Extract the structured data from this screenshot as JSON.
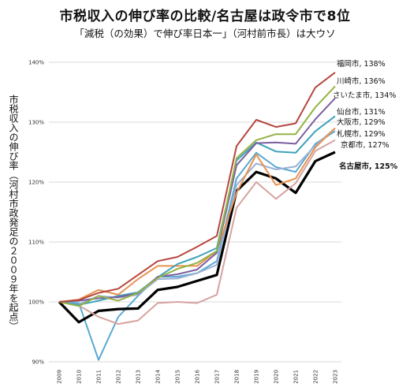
{
  "title": "市税収入の伸び率の比較/名古屋は政令市で8位",
  "subtitle": "「減税（の効果）で伸び率日本一」（河村前市長）は大ウソ",
  "chart_data": {
    "type": "line",
    "title": "市税収入の伸び率の比較/名古屋は政令市で8位",
    "subtitle": "「減税（の効果）で伸び率日本一」（河村前市長）は大ウソ",
    "ylabel": "市税収入の伸び率（河村市政発足の２００９年を起点）",
    "xlabel": "",
    "x": [
      "2009",
      "2010",
      "2011",
      "2012",
      "2013",
      "2014",
      "2015",
      "2016",
      "2017",
      "2018",
      "2019",
      "2020",
      "2021",
      "2022",
      "2023"
    ],
    "ylim": [
      90,
      140
    ],
    "yticks": [
      "90%",
      "100%",
      "110%",
      "120%",
      "130%",
      "140%"
    ],
    "grid": "horizontal",
    "series": [
      {
        "name": "福岡市, 138%",
        "color": "#b5473f",
        "bold": false,
        "values": [
          100,
          100.3,
          101.5,
          102.2,
          104.5,
          106.8,
          107.5,
          109.2,
          111,
          126,
          130.4,
          129.2,
          129.8,
          135.8,
          138.3
        ]
      },
      {
        "name": "川崎市, 136%",
        "color": "#93b246",
        "bold": false,
        "values": [
          100,
          99.3,
          101,
          100.2,
          101.5,
          104,
          105.5,
          106.5,
          108.5,
          124,
          127,
          128,
          128,
          132.5,
          136
        ]
      },
      {
        "name": "さいたま市, 134%",
        "color": "#7a5fa0",
        "bold": false,
        "values": [
          100,
          100.2,
          100.6,
          100.8,
          101.4,
          104.2,
          104.6,
          105.4,
          108.2,
          122.8,
          126.5,
          126.6,
          126.4,
          130.5,
          134
        ]
      },
      {
        "name": "仙台市, 131%",
        "color": "#3ea3b9",
        "bold": false,
        "values": [
          100,
          99.5,
          100.2,
          101,
          101.6,
          104.1,
          106.3,
          107.5,
          109,
          123.6,
          126.6,
          125.1,
          124.9,
          128.5,
          131
        ]
      },
      {
        "name": "大阪市, 129%",
        "color": "#e8914f",
        "bold": false,
        "values": [
          100,
          100.4,
          102,
          101.2,
          103.8,
          106,
          106,
          106,
          108.5,
          118.2,
          124.6,
          119.5,
          120.6,
          125.8,
          129
        ]
      },
      {
        "name": "札幌市, 129%",
        "color": "#9bb1d5",
        "bold": false,
        "values": [
          100,
          99.6,
          101,
          100.7,
          101.2,
          103.8,
          103.9,
          104.8,
          106.2,
          119.5,
          123.1,
          122.1,
          122.6,
          126.1,
          129
        ]
      },
      {
        "name": "京都市, 127%",
        "color": "#d5a3a0",
        "bold": false,
        "values": [
          100,
          99.4,
          97.5,
          96.3,
          96.9,
          99.8,
          100,
          99.8,
          101.2,
          115.7,
          120,
          117.2,
          119.8,
          125.2,
          127
        ]
      },
      {
        "name": "名古屋市, 125%",
        "color": "#000000",
        "bold": true,
        "values": [
          100,
          96.6,
          98.5,
          98.8,
          98.9,
          102,
          102.5,
          103.5,
          104.5,
          118.5,
          121.7,
          120.6,
          118.2,
          123.5,
          125
        ]
      }
    ],
    "extra_series": [
      {
        "color": "#5aa8d2",
        "values": [
          100,
          99.8,
          90.3,
          97.5,
          101,
          104.2,
          104.2,
          104.8,
          106.8,
          120.6,
          124.9,
          122.5,
          121.7,
          126.4,
          128.5
        ]
      }
    ]
  }
}
